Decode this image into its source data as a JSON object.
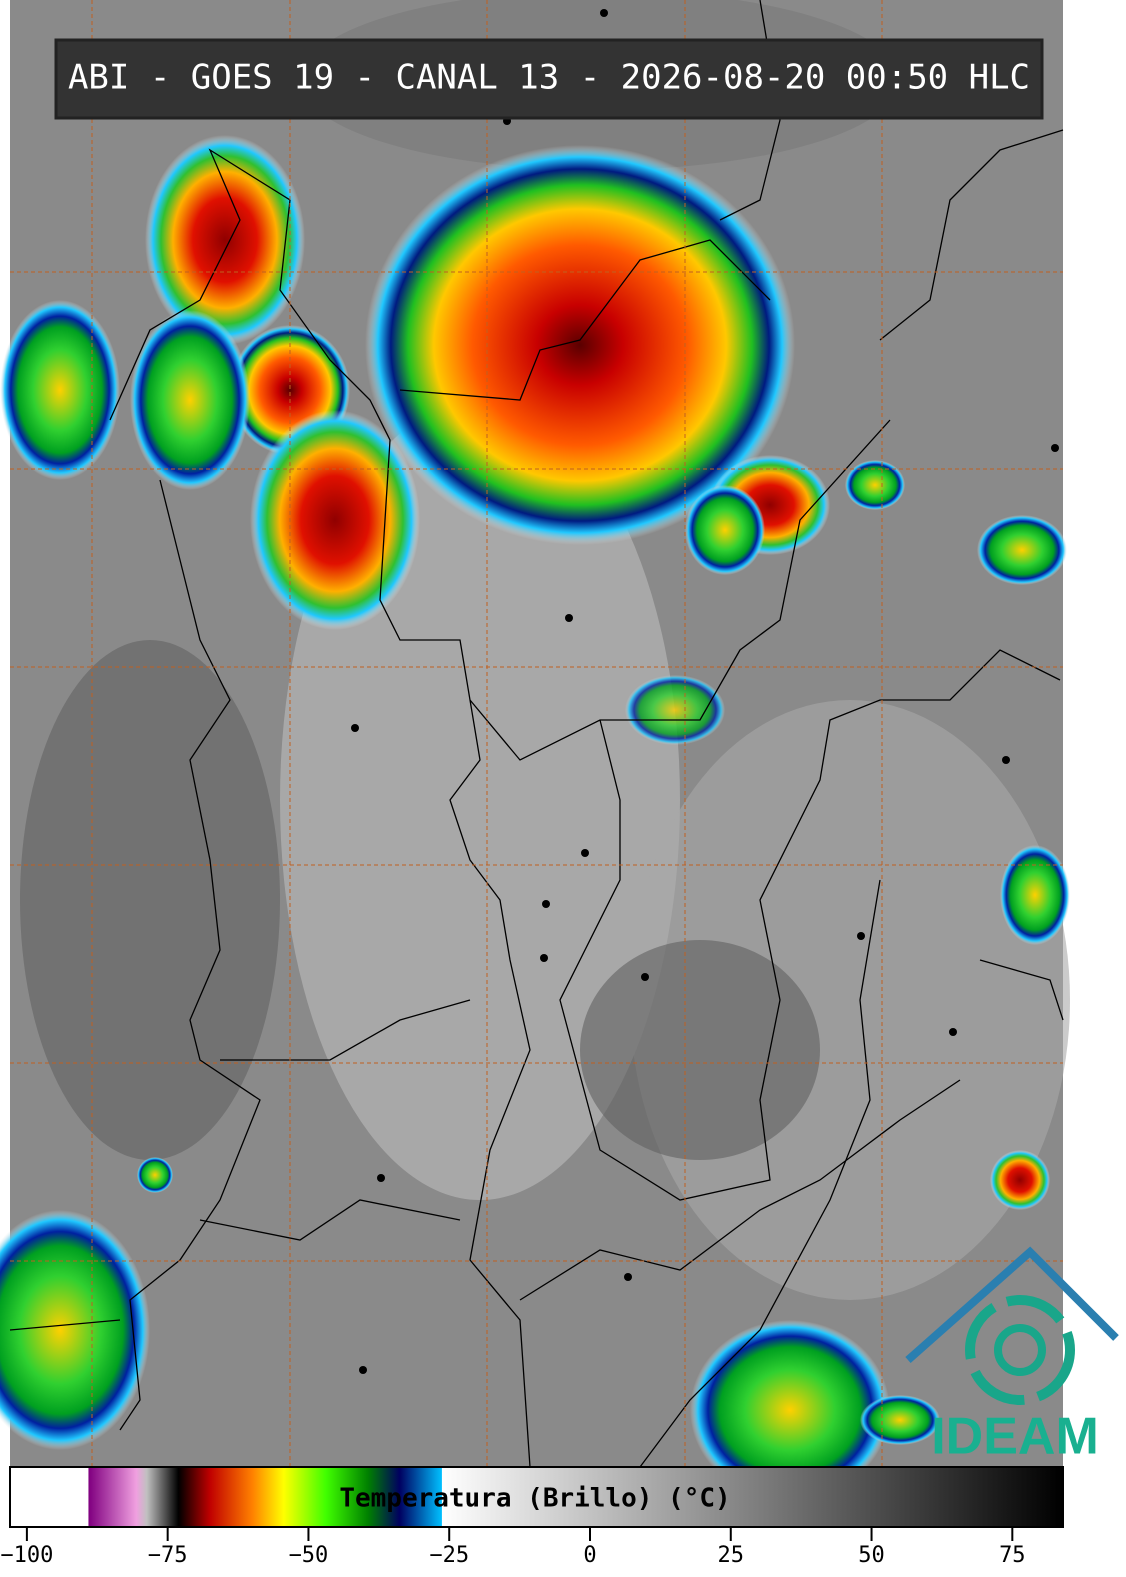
{
  "header": {
    "title": "ABI - GOES 19 - CANAL 13 - 2026-08-20 00:50 HLC"
  },
  "colorbar": {
    "label": "Temperatura (Brillo) (°C)",
    "lim": [
      -103,
      84
    ],
    "ticks": [
      {
        "value": -100,
        "label": "−100"
      },
      {
        "value": -75,
        "label": "−75"
      },
      {
        "value": -50,
        "label": "−50"
      },
      {
        "value": -25,
        "label": "−25"
      },
      0,
      25,
      50,
      75
    ]
  },
  "logo": {
    "text": "IDEAM"
  }
}
